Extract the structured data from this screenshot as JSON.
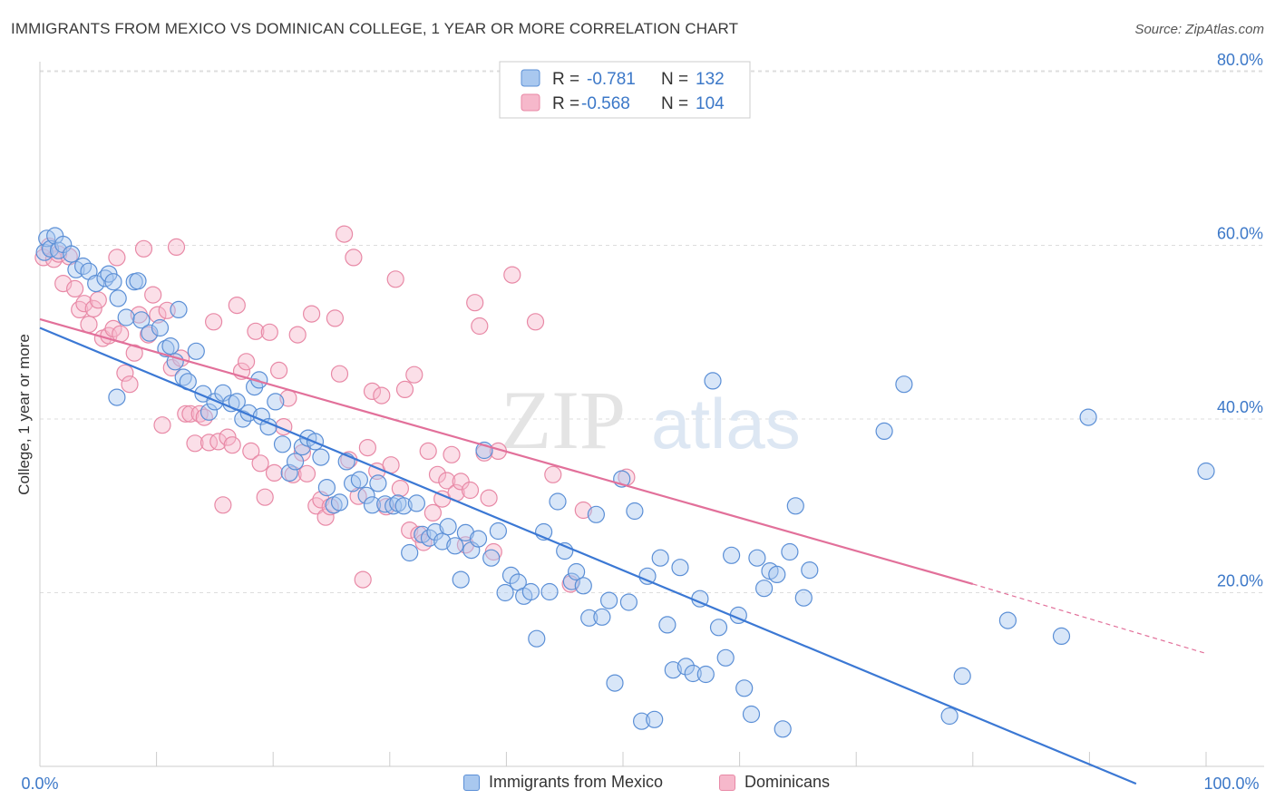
{
  "header": {
    "title": "IMMIGRANTS FROM MEXICO VS DOMINICAN COLLEGE, 1 YEAR OR MORE CORRELATION CHART",
    "source": "Source: ZipAtlas.com"
  },
  "watermark": {
    "zip": "ZIP",
    "atlas": "atlas"
  },
  "colors": {
    "blue_fill": "#a9c8ef",
    "blue_stroke": "#5b8fd6",
    "blue_line": "#3b78d4",
    "pink_fill": "#f6b8cb",
    "pink_stroke": "#e889a6",
    "pink_line": "#e2709a",
    "tick_label": "#3c78c8",
    "grid": "#dddddd"
  },
  "legend": {
    "r_label": "R =",
    "n_label": "N =",
    "entries": [
      {
        "r": "-0.781",
        "n": "132",
        "color": "blue"
      },
      {
        "r": "-0.568",
        "n": "104",
        "color": "pink"
      }
    ]
  },
  "chart_data": {
    "type": "scatter",
    "title": "IMMIGRANTS FROM MEXICO VS DOMINICAN COLLEGE, 1 YEAR OR MORE CORRELATION CHART",
    "xlabel": "",
    "ylabel": "College, 1 year or more",
    "xlim": [
      0,
      100
    ],
    "ylim": [
      0,
      80
    ],
    "x_tick_labels": [
      "0.0%",
      "100.0%"
    ],
    "y_ticks": [
      20,
      40,
      60,
      80
    ],
    "y_tick_labels": [
      "20.0%",
      "40.0%",
      "60.0%",
      "80.0%"
    ],
    "grid": true,
    "legend_position": "top-center",
    "series": [
      {
        "name": "Immigrants from Mexico",
        "color": "blue",
        "r": -0.781,
        "n": 132,
        "trend": {
          "x": [
            0,
            94
          ],
          "y": [
            50.5,
            -2.0
          ]
        },
        "points": [
          [
            0.4,
            59.2
          ],
          [
            0.6,
            60.8
          ],
          [
            0.9,
            59.6
          ],
          [
            1.3,
            61.1
          ],
          [
            1.6,
            59.4
          ],
          [
            2.0,
            60.1
          ],
          [
            2.7,
            59.0
          ],
          [
            3.1,
            57.2
          ],
          [
            3.7,
            57.6
          ],
          [
            4.2,
            57.0
          ],
          [
            4.8,
            55.6
          ],
          [
            5.6,
            56.2
          ],
          [
            5.9,
            56.7
          ],
          [
            6.3,
            55.8
          ],
          [
            6.7,
            53.9
          ],
          [
            7.4,
            51.7
          ],
          [
            8.1,
            55.8
          ],
          [
            8.4,
            55.9
          ],
          [
            8.7,
            51.4
          ],
          [
            9.4,
            49.9
          ],
          [
            10.3,
            50.5
          ],
          [
            10.8,
            48.1
          ],
          [
            11.2,
            48.4
          ],
          [
            11.6,
            46.6
          ],
          [
            11.9,
            52.6
          ],
          [
            12.3,
            44.8
          ],
          [
            12.7,
            44.3
          ],
          [
            13.4,
            47.8
          ],
          [
            14.0,
            42.9
          ],
          [
            14.5,
            40.8
          ],
          [
            15.0,
            42.0
          ],
          [
            15.7,
            43.0
          ],
          [
            16.4,
            41.8
          ],
          [
            16.9,
            42.0
          ],
          [
            17.4,
            40.0
          ],
          [
            17.9,
            40.7
          ],
          [
            18.4,
            43.7
          ],
          [
            19.0,
            40.3
          ],
          [
            19.6,
            39.1
          ],
          [
            20.2,
            42.0
          ],
          [
            20.8,
            37.1
          ],
          [
            21.4,
            33.8
          ],
          [
            21.9,
            35.1
          ],
          [
            22.5,
            36.8
          ],
          [
            23.0,
            37.8
          ],
          [
            23.6,
            37.4
          ],
          [
            24.1,
            35.6
          ],
          [
            24.6,
            32.1
          ],
          [
            25.2,
            30.1
          ],
          [
            25.7,
            30.4
          ],
          [
            26.3,
            35.1
          ],
          [
            26.8,
            32.6
          ],
          [
            27.4,
            33.0
          ],
          [
            28.0,
            31.2
          ],
          [
            28.5,
            30.1
          ],
          [
            29.0,
            32.6
          ],
          [
            29.6,
            30.2
          ],
          [
            30.3,
            30.0
          ],
          [
            30.7,
            30.3
          ],
          [
            31.2,
            30.0
          ],
          [
            31.7,
            24.6
          ],
          [
            32.3,
            30.3
          ],
          [
            32.8,
            26.7
          ],
          [
            33.4,
            26.3
          ],
          [
            33.9,
            27.0
          ],
          [
            34.5,
            25.9
          ],
          [
            35.0,
            27.6
          ],
          [
            35.6,
            25.4
          ],
          [
            36.1,
            21.5
          ],
          [
            36.5,
            26.9
          ],
          [
            37.0,
            24.9
          ],
          [
            37.6,
            26.2
          ],
          [
            38.1,
            36.4
          ],
          [
            38.7,
            24.0
          ],
          [
            39.3,
            27.1
          ],
          [
            39.9,
            20.0
          ],
          [
            40.4,
            22.0
          ],
          [
            41.0,
            21.2
          ],
          [
            41.5,
            19.6
          ],
          [
            42.1,
            20.1
          ],
          [
            42.6,
            14.7
          ],
          [
            43.2,
            27.0
          ],
          [
            43.7,
            20.1
          ],
          [
            44.4,
            30.5
          ],
          [
            45.0,
            24.8
          ],
          [
            45.6,
            21.3
          ],
          [
            46.0,
            22.4
          ],
          [
            46.6,
            20.8
          ],
          [
            47.1,
            17.1
          ],
          [
            47.7,
            29.0
          ],
          [
            48.2,
            17.2
          ],
          [
            48.8,
            19.1
          ],
          [
            49.3,
            9.6
          ],
          [
            49.9,
            33.1
          ],
          [
            50.5,
            18.9
          ],
          [
            51.0,
            29.4
          ],
          [
            51.6,
            5.2
          ],
          [
            52.1,
            21.9
          ],
          [
            52.7,
            5.4
          ],
          [
            53.2,
            24.0
          ],
          [
            53.8,
            16.3
          ],
          [
            54.3,
            11.1
          ],
          [
            54.9,
            22.9
          ],
          [
            55.4,
            11.5
          ],
          [
            56.0,
            10.7
          ],
          [
            56.6,
            19.3
          ],
          [
            57.1,
            10.6
          ],
          [
            57.7,
            44.4
          ],
          [
            58.2,
            16.0
          ],
          [
            58.8,
            12.5
          ],
          [
            59.3,
            24.3
          ],
          [
            59.9,
            17.4
          ],
          [
            60.4,
            9.0
          ],
          [
            61.0,
            6.0
          ],
          [
            61.5,
            24.0
          ],
          [
            62.1,
            20.5
          ],
          [
            62.6,
            22.5
          ],
          [
            63.2,
            22.1
          ],
          [
            63.7,
            4.3
          ],
          [
            64.3,
            24.7
          ],
          [
            64.8,
            30.0
          ],
          [
            65.5,
            19.4
          ],
          [
            66.0,
            22.6
          ],
          [
            72.4,
            38.6
          ],
          [
            74.1,
            44.0
          ],
          [
            78.0,
            5.8
          ],
          [
            79.1,
            10.4
          ],
          [
            83.0,
            16.8
          ],
          [
            87.6,
            15.0
          ],
          [
            89.9,
            40.2
          ],
          [
            100.0,
            34.0
          ],
          [
            6.6,
            42.5
          ],
          [
            18.8,
            44.5
          ]
        ]
      },
      {
        "name": "Dominicans",
        "color": "pink",
        "r": -0.568,
        "n": 104,
        "trend": {
          "x": [
            0,
            80
          ],
          "y": [
            51.5,
            21.0
          ]
        },
        "trend_dashed": {
          "x": [
            80,
            100
          ],
          "y": [
            21.0,
            13.0
          ]
        },
        "points": [
          [
            0.3,
            58.6
          ],
          [
            0.8,
            59.9
          ],
          [
            1.2,
            58.4
          ],
          [
            1.6,
            59.0
          ],
          [
            2.0,
            55.6
          ],
          [
            2.5,
            58.7
          ],
          [
            3.0,
            55.0
          ],
          [
            3.4,
            52.6
          ],
          [
            3.8,
            53.3
          ],
          [
            4.2,
            50.9
          ],
          [
            4.6,
            52.7
          ],
          [
            5.0,
            53.7
          ],
          [
            5.4,
            49.3
          ],
          [
            5.9,
            49.6
          ],
          [
            6.3,
            50.4
          ],
          [
            6.6,
            58.6
          ],
          [
            6.9,
            49.8
          ],
          [
            7.3,
            45.3
          ],
          [
            7.7,
            44.0
          ],
          [
            8.1,
            47.6
          ],
          [
            8.5,
            52.0
          ],
          [
            8.9,
            59.6
          ],
          [
            9.3,
            49.7
          ],
          [
            9.7,
            54.3
          ],
          [
            10.1,
            52.0
          ],
          [
            10.5,
            39.3
          ],
          [
            10.9,
            52.5
          ],
          [
            11.3,
            45.9
          ],
          [
            11.7,
            59.8
          ],
          [
            12.1,
            47.0
          ],
          [
            12.5,
            40.6
          ],
          [
            12.9,
            40.6
          ],
          [
            13.3,
            37.2
          ],
          [
            13.7,
            40.6
          ],
          [
            14.1,
            40.2
          ],
          [
            14.5,
            37.3
          ],
          [
            14.9,
            51.2
          ],
          [
            15.3,
            37.4
          ],
          [
            15.7,
            30.1
          ],
          [
            16.1,
            37.9
          ],
          [
            16.5,
            37.0
          ],
          [
            16.9,
            53.1
          ],
          [
            17.3,
            45.5
          ],
          [
            17.7,
            46.6
          ],
          [
            18.1,
            36.3
          ],
          [
            18.5,
            50.1
          ],
          [
            18.9,
            34.9
          ],
          [
            19.3,
            31.0
          ],
          [
            19.7,
            50.0
          ],
          [
            20.1,
            33.8
          ],
          [
            20.5,
            45.6
          ],
          [
            20.9,
            39.1
          ],
          [
            21.3,
            42.4
          ],
          [
            21.7,
            33.6
          ],
          [
            22.1,
            49.7
          ],
          [
            22.5,
            36.1
          ],
          [
            22.9,
            33.7
          ],
          [
            23.3,
            52.1
          ],
          [
            23.7,
            30.0
          ],
          [
            24.1,
            30.7
          ],
          [
            24.5,
            28.7
          ],
          [
            24.9,
            29.9
          ],
          [
            25.3,
            51.6
          ],
          [
            25.7,
            45.2
          ],
          [
            26.1,
            61.3
          ],
          [
            26.5,
            35.3
          ],
          [
            26.9,
            58.6
          ],
          [
            27.3,
            31.1
          ],
          [
            27.7,
            21.5
          ],
          [
            28.1,
            36.7
          ],
          [
            28.5,
            43.2
          ],
          [
            28.9,
            34.0
          ],
          [
            29.3,
            42.7
          ],
          [
            29.7,
            29.9
          ],
          [
            30.1,
            34.7
          ],
          [
            30.5,
            56.1
          ],
          [
            30.9,
            32.0
          ],
          [
            31.3,
            43.4
          ],
          [
            31.7,
            27.2
          ],
          [
            32.1,
            45.1
          ],
          [
            32.5,
            26.7
          ],
          [
            32.9,
            25.8
          ],
          [
            33.3,
            36.3
          ],
          [
            33.7,
            29.2
          ],
          [
            34.1,
            33.6
          ],
          [
            34.5,
            30.8
          ],
          [
            34.9,
            32.9
          ],
          [
            35.3,
            35.9
          ],
          [
            35.7,
            31.5
          ],
          [
            36.1,
            32.8
          ],
          [
            36.5,
            25.5
          ],
          [
            36.9,
            31.8
          ],
          [
            37.3,
            53.4
          ],
          [
            37.7,
            50.7
          ],
          [
            38.1,
            36.1
          ],
          [
            38.5,
            30.9
          ],
          [
            38.9,
            24.7
          ],
          [
            39.3,
            36.3
          ],
          [
            40.5,
            56.6
          ],
          [
            42.5,
            51.2
          ],
          [
            44.0,
            33.6
          ],
          [
            45.5,
            21.0
          ],
          [
            46.6,
            29.5
          ],
          [
            50.3,
            33.3
          ]
        ]
      }
    ]
  },
  "bottom_legend": {
    "items": [
      {
        "label": "Immigrants from Mexico",
        "color": "blue"
      },
      {
        "label": "Dominicans",
        "color": "pink"
      }
    ]
  }
}
